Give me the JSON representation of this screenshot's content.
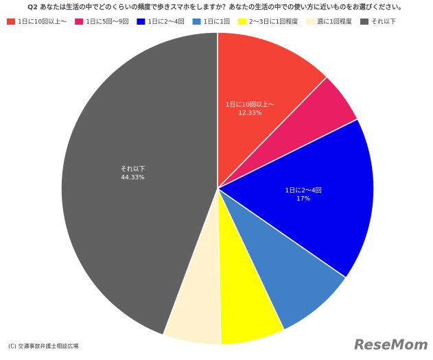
{
  "chart_data": {
    "type": "pie",
    "title": "Q2 あなたは生活の中でどのくらいの頻度で歩きスマホをしますか？あなたの生活の中での使い方に近いものをお選びください。",
    "categories": [
      "1日に10回以上～",
      "1日に5回～9回",
      "1日に2～4回",
      "1日に1回",
      "2～3日に1回程度",
      "週に1回程度",
      "それ以下"
    ],
    "values": [
      12.33,
      5.33,
      17,
      8.33,
      6.67,
      6,
      44.33
    ],
    "value_labels": [
      "12.33%",
      null,
      "17%",
      null,
      null,
      null,
      "44.33%"
    ],
    "colors": [
      "#f44336",
      "#e91e63",
      "#0000ee",
      "#3f80c6",
      "#ffff00",
      "#fff2cc",
      "#616161"
    ],
    "legend": "top",
    "source": "(C) 交通事故弁護士相談広場",
    "logo": "ReseMom"
  }
}
